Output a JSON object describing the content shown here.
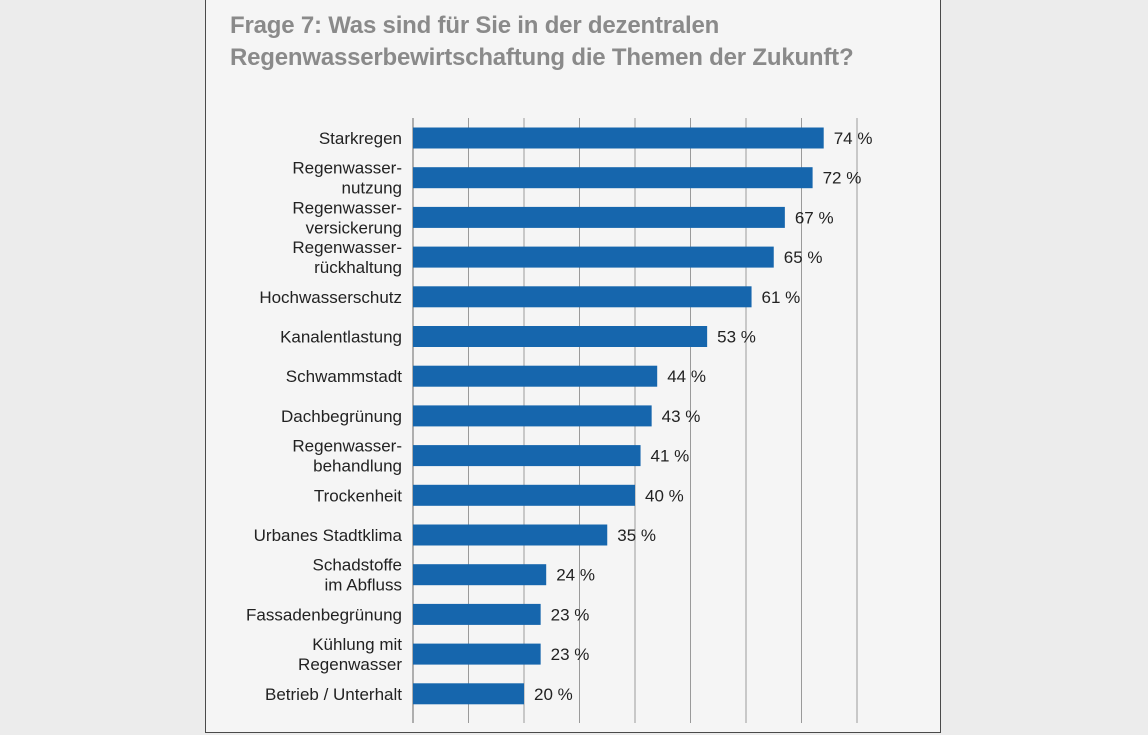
{
  "title_lines": [
    "Frage 7: Was sind für Sie in der dezentralen",
    "Regenwasserbewirtschaftung die Themen der Zukunft?"
  ],
  "colors": {
    "bar": "#1666ad",
    "grid": "#9a9a9a",
    "title": "#8a8a8a",
    "label": "#222222",
    "panel": "#f5f5f5",
    "border": "#4a4a4a"
  },
  "chart_data": {
    "type": "bar",
    "orientation": "horizontal",
    "categories": [
      "Starkregen",
      "Regenwasser-\nnutzung",
      "Regenwasser-\nversickerung",
      "Regenwasser-\nrückhaltung",
      "Hochwasserschutz",
      "Kanalentlastung",
      "Schwammstadt",
      "Dachbegrünung",
      "Regenwasser-\nbehandlung",
      "Trockenheit",
      "Urbanes Stadtklima",
      "Schadstoffe\nim Abfluss",
      "Fassadenbegrünung",
      "Kühlung mit\nRegenwasser",
      "Betrieb / Unterhalt"
    ],
    "values": [
      74,
      72,
      67,
      65,
      61,
      53,
      44,
      43,
      41,
      40,
      35,
      24,
      23,
      23,
      20
    ],
    "value_labels": [
      "74 %",
      "72 %",
      "67 %",
      "65 %",
      "61 %",
      "53 %",
      "44 %",
      "43 %",
      "41 %",
      "40 %",
      "35 %",
      "24 %",
      "23 %",
      "23 %",
      "20 %"
    ],
    "xlim": [
      0,
      80
    ],
    "grid": true,
    "legend": "none"
  }
}
